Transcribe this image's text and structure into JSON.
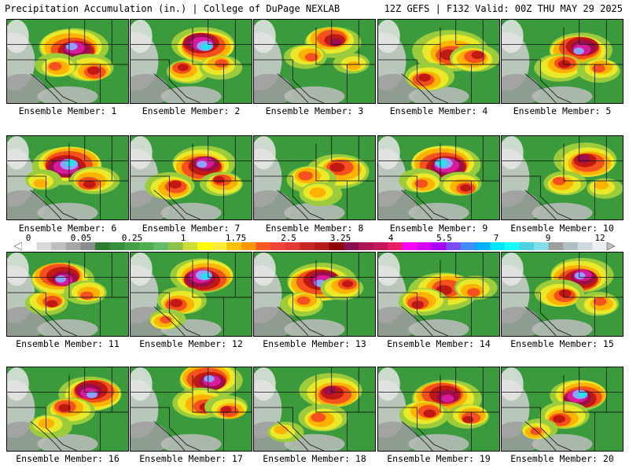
{
  "header": {
    "title_left": "Precipitation Accumulation (in.) | College of DuPage NEXLAB",
    "title_right": "12Z GEFS | F132 Valid: 00Z THU MAY 29 2025"
  },
  "colorbar": {
    "labels": [
      "0",
      "0.05",
      "0.25",
      "1",
      "1.75",
      "2.5",
      "3.25",
      "4",
      "5.5",
      "7",
      "9",
      "12"
    ],
    "colors": [
      "#ffffff",
      "#d9d9d9",
      "#bfbfbf",
      "#a6a6a6",
      "#8c8c8c",
      "#2e7d32",
      "#388e3c",
      "#43a047",
      "#4caf50",
      "#66bb6a",
      "#8bc34a",
      "#cddc39",
      "#ffff00",
      "#ffeb3b",
      "#ffc107",
      "#ff9800",
      "#ff5722",
      "#f44336",
      "#e53935",
      "#c62828",
      "#b71c1c",
      "#8e0000",
      "#880e4f",
      "#ad1457",
      "#c2185b",
      "#e91e63",
      "#ff00ff",
      "#d500f9",
      "#aa00ff",
      "#7c4dff",
      "#448aff",
      "#00b0ff",
      "#00e5ff",
      "#18ffff",
      "#4dd0e1",
      "#80deea",
      "#9e9e9e",
      "#b0bec5",
      "#cfd8dc",
      "#eceff1"
    ]
  },
  "panels": [
    {
      "caption": "Ensemble Member: 1",
      "blobs": [
        [
          0.55,
          0.35,
          0.5,
          0.9
        ],
        [
          0.7,
          0.6,
          0.35,
          0.55
        ],
        [
          0.4,
          0.55,
          0.3,
          0.4
        ]
      ]
    },
    {
      "caption": "Ensemble Member: 2",
      "blobs": [
        [
          0.6,
          0.3,
          0.45,
          0.95
        ],
        [
          0.45,
          0.6,
          0.3,
          0.6
        ],
        [
          0.75,
          0.55,
          0.3,
          0.45
        ]
      ]
    },
    {
      "caption": "Ensemble Member: 3",
      "blobs": [
        [
          0.65,
          0.25,
          0.4,
          0.7
        ],
        [
          0.45,
          0.45,
          0.3,
          0.4
        ],
        [
          0.8,
          0.55,
          0.25,
          0.35
        ]
      ]
    },
    {
      "caption": "Ensemble Member: 4",
      "blobs": [
        [
          0.6,
          0.4,
          0.55,
          0.6
        ],
        [
          0.4,
          0.7,
          0.35,
          0.5
        ],
        [
          0.8,
          0.45,
          0.35,
          0.55
        ]
      ]
    },
    {
      "caption": "Ensemble Member: 5",
      "blobs": [
        [
          0.65,
          0.35,
          0.45,
          0.9
        ],
        [
          0.5,
          0.55,
          0.35,
          0.5
        ],
        [
          0.8,
          0.6,
          0.3,
          0.4
        ]
      ]
    },
    {
      "caption": "Ensemble Member: 6",
      "blobs": [
        [
          0.5,
          0.35,
          0.5,
          0.95
        ],
        [
          0.7,
          0.55,
          0.35,
          0.6
        ],
        [
          0.3,
          0.55,
          0.25,
          0.35
        ]
      ]
    },
    {
      "caption": "Ensemble Member: 7",
      "blobs": [
        [
          0.6,
          0.35,
          0.45,
          0.9
        ],
        [
          0.35,
          0.6,
          0.35,
          0.55
        ],
        [
          0.75,
          0.55,
          0.3,
          0.5
        ]
      ]
    },
    {
      "caption": "Ensemble Member: 8",
      "blobs": [
        [
          0.7,
          0.4,
          0.45,
          0.6
        ],
        [
          0.45,
          0.5,
          0.35,
          0.45
        ],
        [
          0.55,
          0.7,
          0.3,
          0.35
        ]
      ]
    },
    {
      "caption": "Ensemble Member: 9",
      "blobs": [
        [
          0.55,
          0.35,
          0.5,
          0.95
        ],
        [
          0.7,
          0.6,
          0.3,
          0.55
        ],
        [
          0.35,
          0.55,
          0.3,
          0.4
        ]
      ]
    },
    {
      "caption": "Ensemble Member: 10",
      "blobs": [
        [
          0.7,
          0.3,
          0.45,
          0.65
        ],
        [
          0.5,
          0.55,
          0.3,
          0.4
        ],
        [
          0.85,
          0.6,
          0.25,
          0.35
        ]
      ]
    },
    {
      "caption": "Ensemble Member: 11",
      "blobs": [
        [
          0.45,
          0.3,
          0.45,
          0.9
        ],
        [
          0.35,
          0.6,
          0.3,
          0.5
        ],
        [
          0.65,
          0.5,
          0.3,
          0.4
        ]
      ]
    },
    {
      "caption": "Ensemble Member: 12",
      "blobs": [
        [
          0.6,
          0.3,
          0.45,
          0.95
        ],
        [
          0.4,
          0.6,
          0.35,
          0.6
        ],
        [
          0.3,
          0.8,
          0.25,
          0.45
        ]
      ]
    },
    {
      "caption": "Ensemble Member: 13",
      "blobs": [
        [
          0.55,
          0.35,
          0.5,
          0.9
        ],
        [
          0.75,
          0.4,
          0.3,
          0.55
        ],
        [
          0.4,
          0.6,
          0.3,
          0.4
        ]
      ]
    },
    {
      "caption": "Ensemble Member: 14",
      "blobs": [
        [
          0.55,
          0.45,
          0.5,
          0.6
        ],
        [
          0.35,
          0.6,
          0.35,
          0.5
        ],
        [
          0.8,
          0.45,
          0.3,
          0.45
        ]
      ]
    },
    {
      "caption": "Ensemble Member: 15",
      "blobs": [
        [
          0.65,
          0.3,
          0.45,
          0.85
        ],
        [
          0.5,
          0.5,
          0.35,
          0.5
        ],
        [
          0.8,
          0.6,
          0.3,
          0.4
        ]
      ]
    },
    {
      "caption": "Ensemble Member: 16",
      "blobs": [
        [
          0.7,
          0.3,
          0.45,
          0.85
        ],
        [
          0.5,
          0.5,
          0.35,
          0.5
        ],
        [
          0.35,
          0.7,
          0.3,
          0.35
        ]
      ]
    },
    {
      "caption": "Ensemble Member: 17",
      "blobs": [
        [
          0.65,
          0.15,
          0.45,
          0.9
        ],
        [
          0.6,
          0.45,
          0.4,
          0.55
        ],
        [
          0.8,
          0.5,
          0.3,
          0.5
        ]
      ]
    },
    {
      "caption": "Ensemble Member: 18",
      "blobs": [
        [
          0.65,
          0.3,
          0.45,
          0.7
        ],
        [
          0.55,
          0.6,
          0.35,
          0.45
        ],
        [
          0.25,
          0.75,
          0.25,
          0.35
        ]
      ]
    },
    {
      "caption": "Ensemble Member: 19",
      "blobs": [
        [
          0.55,
          0.35,
          0.5,
          0.8
        ],
        [
          0.4,
          0.55,
          0.35,
          0.55
        ],
        [
          0.75,
          0.6,
          0.3,
          0.6
        ]
      ]
    },
    {
      "caption": "Ensemble Member: 20",
      "blobs": [
        [
          0.65,
          0.35,
          0.4,
          0.95
        ],
        [
          0.5,
          0.6,
          0.35,
          0.5
        ],
        [
          0.3,
          0.75,
          0.25,
          0.4
        ]
      ]
    }
  ]
}
